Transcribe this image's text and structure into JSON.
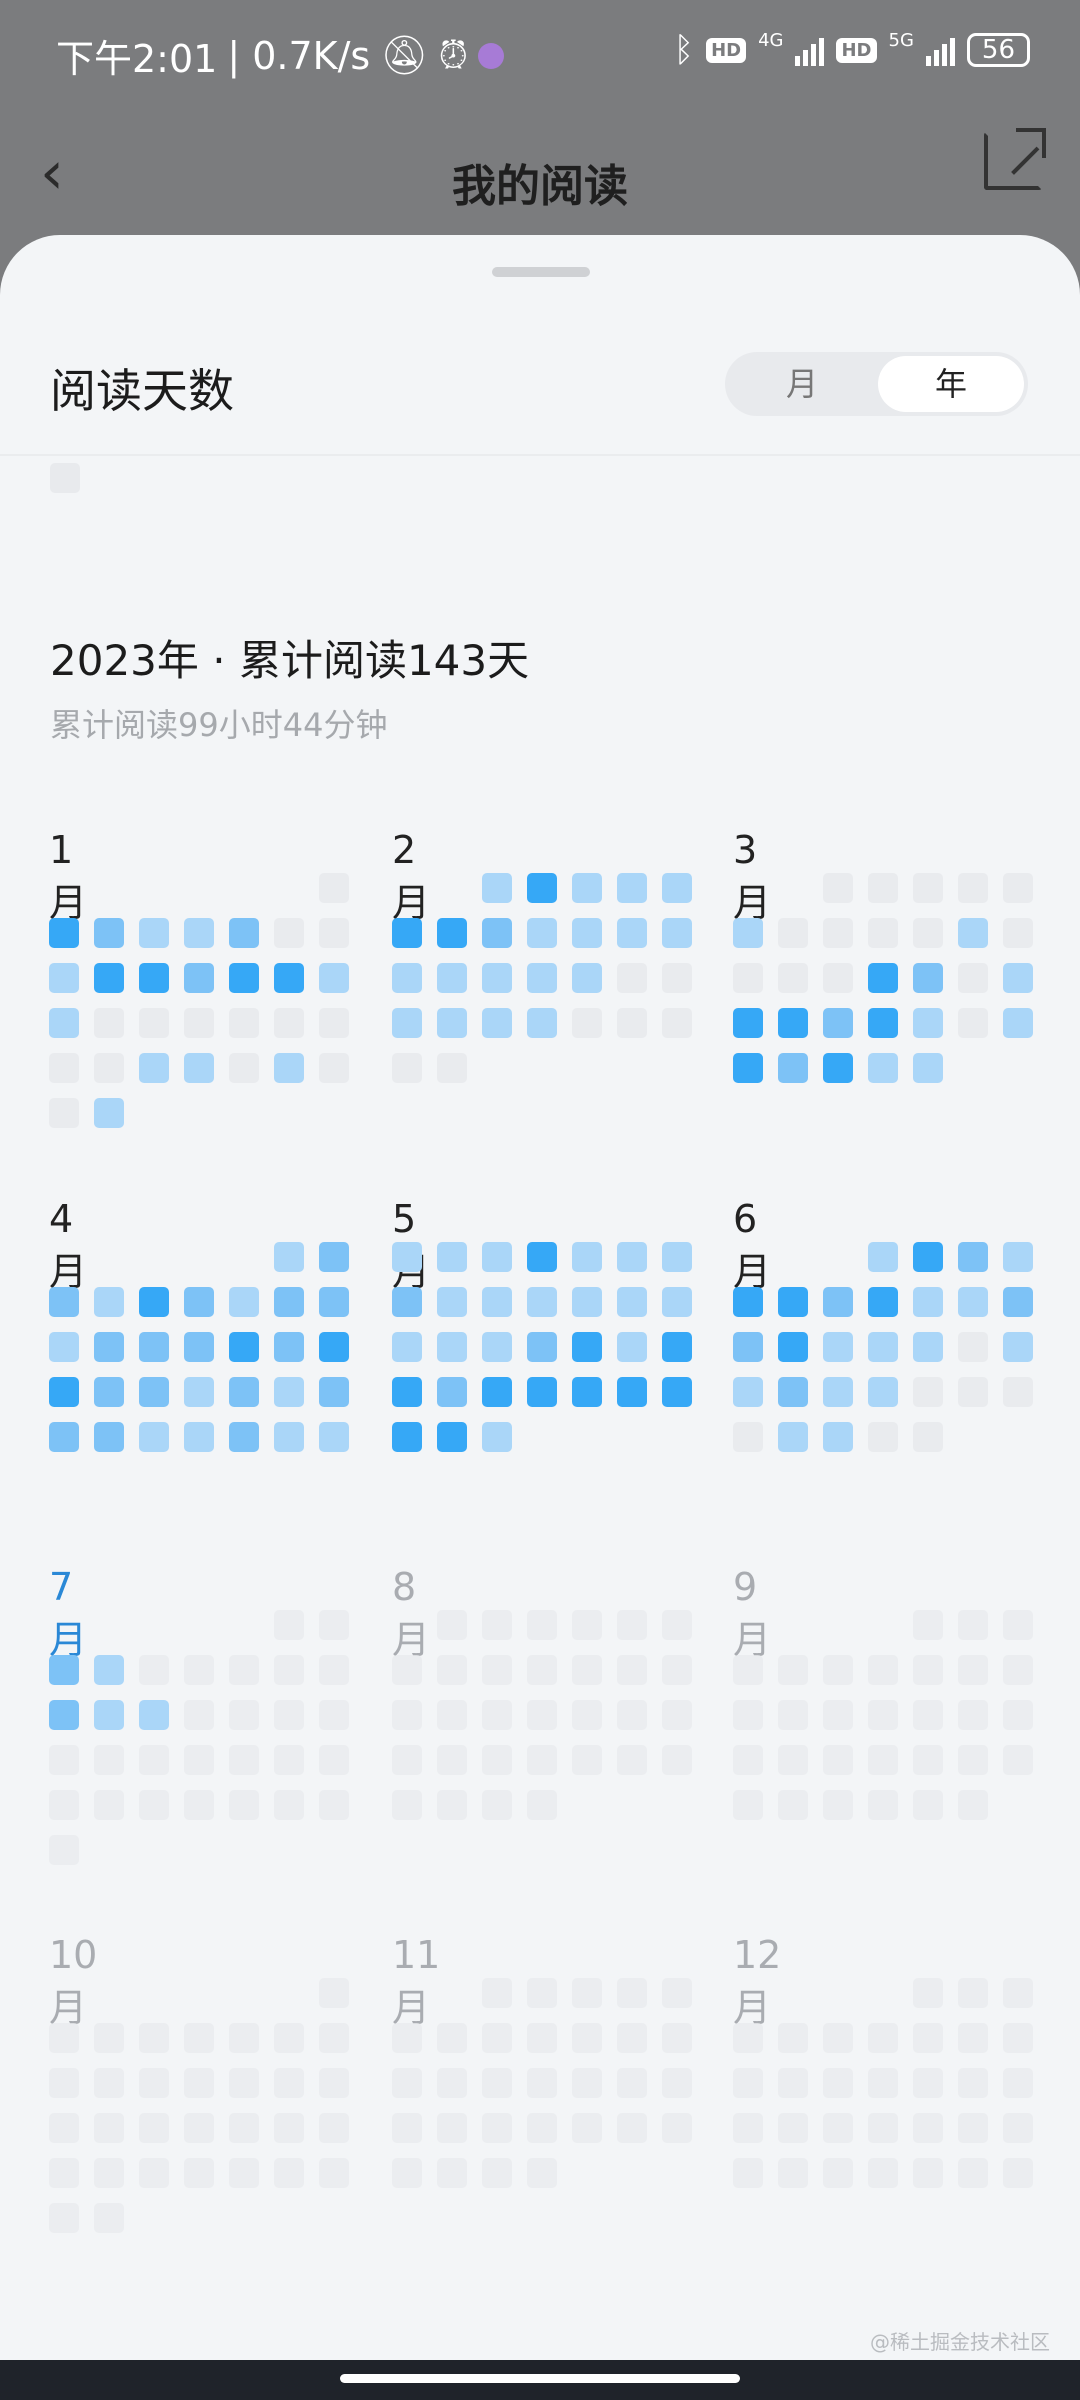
{
  "status_bar": {
    "time": "下午2:01",
    "speed": "| 0.7K/s",
    "net1": "4G",
    "net2": "5G",
    "hd": "HD",
    "battery": "56"
  },
  "header": {
    "title": "我的阅读",
    "back_icon": "chevron-left-icon",
    "share_icon": "share-icon"
  },
  "section": {
    "title": "阅读天数",
    "toggle": [
      {
        "label": "月",
        "selected": false
      },
      {
        "label": "年",
        "selected": true
      }
    ]
  },
  "summary": {
    "title": "2023年 · 累计阅读143天",
    "subtitle": "累计阅读99小时44分钟"
  },
  "colors": {
    "level0": "#e9ebee",
    "level1": "#aad6f8",
    "level2": "#7dc2f6",
    "level3": "#36a8f6",
    "current_month": "#2a88d6",
    "past_month": "#222222",
    "future_month": "#a9acb1"
  },
  "calendar": {
    "week_start": "Monday",
    "current_month_index": 6,
    "months": [
      {
        "label": "1月",
        "offset": 6,
        "levels": [
          0,
          3,
          2,
          1,
          1,
          2,
          0,
          0,
          1,
          3,
          3,
          2,
          3,
          3,
          1,
          1,
          0,
          0,
          0,
          0,
          0,
          0,
          0,
          0,
          1,
          1,
          0,
          1,
          0,
          0,
          1
        ]
      },
      {
        "label": "2月",
        "offset": 2,
        "levels": [
          1,
          3,
          1,
          1,
          1,
          3,
          3,
          2,
          1,
          1,
          1,
          1,
          1,
          1,
          1,
          1,
          1,
          0,
          0,
          1,
          1,
          1,
          1,
          0,
          0,
          0,
          0,
          0
        ]
      },
      {
        "label": "3月",
        "offset": 2,
        "levels": [
          0,
          0,
          0,
          0,
          0,
          1,
          0,
          0,
          0,
          0,
          1,
          0,
          0,
          0,
          0,
          3,
          2,
          0,
          1,
          3,
          3,
          2,
          3,
          1,
          0,
          1,
          3,
          2,
          3,
          1,
          1
        ]
      },
      {
        "label": "4月",
        "offset": 5,
        "levels": [
          1,
          2,
          2,
          1,
          3,
          2,
          1,
          2,
          2,
          1,
          2,
          2,
          2,
          3,
          2,
          3,
          3,
          2,
          2,
          1,
          2,
          1,
          2,
          2,
          2,
          1,
          1,
          2,
          1,
          1
        ]
      },
      {
        "label": "5月",
        "offset": 0,
        "levels": [
          1,
          1,
          1,
          3,
          1,
          1,
          1,
          2,
          1,
          1,
          1,
          1,
          1,
          1,
          1,
          1,
          1,
          2,
          3,
          1,
          3,
          3,
          2,
          3,
          3,
          3,
          3,
          3,
          3,
          3,
          1
        ]
      },
      {
        "label": "6月",
        "offset": 3,
        "levels": [
          1,
          3,
          2,
          1,
          3,
          3,
          2,
          3,
          1,
          1,
          2,
          2,
          3,
          1,
          1,
          1,
          0,
          1,
          1,
          2,
          1,
          1,
          0,
          0,
          0,
          0,
          1,
          1,
          0,
          0
        ]
      },
      {
        "label": "7月",
        "offset": 5,
        "levels": [
          0,
          0,
          2,
          1,
          0,
          0,
          0,
          0,
          0,
          2,
          1,
          1,
          0,
          0,
          0,
          0,
          0,
          0,
          0,
          0,
          0,
          0,
          0,
          0,
          0,
          0,
          0,
          0,
          0,
          0,
          0
        ]
      },
      {
        "label": "8月",
        "offset": 1,
        "levels": [
          0,
          0,
          0,
          0,
          0,
          0,
          0,
          0,
          0,
          0,
          0,
          0,
          0,
          0,
          0,
          0,
          0,
          0,
          0,
          0,
          0,
          0,
          0,
          0,
          0,
          0,
          0,
          0,
          0,
          0,
          0
        ]
      },
      {
        "label": "9月",
        "offset": 4,
        "levels": [
          0,
          0,
          0,
          0,
          0,
          0,
          0,
          0,
          0,
          0,
          0,
          0,
          0,
          0,
          0,
          0,
          0,
          0,
          0,
          0,
          0,
          0,
          0,
          0,
          0,
          0,
          0,
          0,
          0,
          0
        ]
      },
      {
        "label": "10月",
        "offset": 6,
        "levels": [
          0,
          0,
          0,
          0,
          0,
          0,
          0,
          0,
          0,
          0,
          0,
          0,
          0,
          0,
          0,
          0,
          0,
          0,
          0,
          0,
          0,
          0,
          0,
          0,
          0,
          0,
          0,
          0,
          0,
          0,
          0
        ]
      },
      {
        "label": "11月",
        "offset": 2,
        "levels": [
          0,
          0,
          0,
          0,
          0,
          0,
          0,
          0,
          0,
          0,
          0,
          0,
          0,
          0,
          0,
          0,
          0,
          0,
          0,
          0,
          0,
          0,
          0,
          0,
          0,
          0,
          0,
          0,
          0,
          0
        ]
      },
      {
        "label": "12月",
        "offset": 4,
        "levels": [
          0,
          0,
          0,
          0,
          0,
          0,
          0,
          0,
          0,
          0,
          0,
          0,
          0,
          0,
          0,
          0,
          0,
          0,
          0,
          0,
          0,
          0,
          0,
          0,
          0,
          0,
          0,
          0,
          0,
          0,
          0
        ]
      }
    ]
  },
  "watermark": "@稀土掘金技术社区"
}
